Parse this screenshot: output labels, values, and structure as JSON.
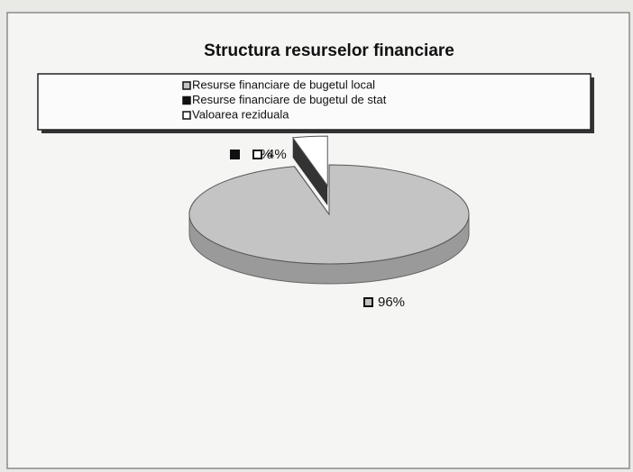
{
  "chart_data": {
    "type": "pie3d",
    "title": "Structura resurselor financiare",
    "categories": [
      "Resurse financiare de bugetul local",
      "Resurse financiare de bugetul de stat",
      "Valoarea reziduala"
    ],
    "values": [
      96,
      0,
      4
    ],
    "value_labels": [
      "96%",
      "0%",
      "4%"
    ],
    "colors": [
      "#c4c4c4",
      "#111111",
      "#ffffff"
    ]
  }
}
